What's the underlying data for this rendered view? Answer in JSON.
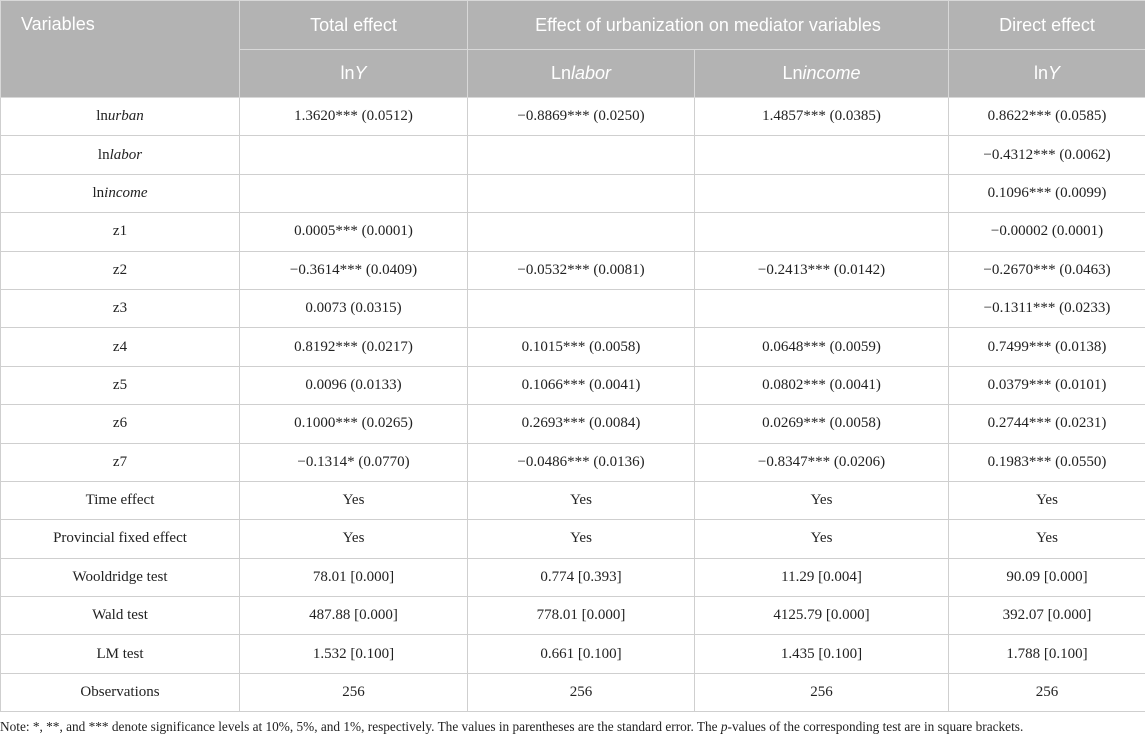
{
  "header": {
    "col_variables": "Variables",
    "total_effect": "Total effect",
    "mediator_effect": "Effect of urbanization on mediator variables",
    "direct_effect": "Direct effect",
    "sub_total": {
      "pre": "ln",
      "it": "Y"
    },
    "sub_labor": {
      "pre": "Ln",
      "it": "labor"
    },
    "sub_income": {
      "pre": "Ln",
      "it": "income"
    },
    "sub_direct": {
      "pre": "ln",
      "it": "Y"
    }
  },
  "rows": [
    {
      "var_pre": "ln",
      "var_it": "urban",
      "vals": [
        "1.3620*** (0.0512)",
        "−0.8869*** (0.0250)",
        "1.4857*** (0.0385)",
        "0.8622*** (0.0585)"
      ]
    },
    {
      "var_pre": "ln",
      "var_it": "labor",
      "vals": [
        "",
        "",
        "",
        "−0.4312*** (0.0062)"
      ]
    },
    {
      "var_pre": "ln",
      "var_it": "income",
      "vals": [
        "",
        "",
        "",
        "0.1096*** (0.0099)"
      ]
    },
    {
      "var_pre": "z1",
      "var_it": "",
      "vals": [
        "0.0005*** (0.0001)",
        "",
        "",
        "−0.00002 (0.0001)"
      ]
    },
    {
      "var_pre": "z2",
      "var_it": "",
      "vals": [
        "−0.3614*** (0.0409)",
        "−0.0532*** (0.0081)",
        "−0.2413*** (0.0142)",
        "−0.2670*** (0.0463)"
      ]
    },
    {
      "var_pre": "z3",
      "var_it": "",
      "vals": [
        "0.0073 (0.0315)",
        "",
        "",
        "−0.1311*** (0.0233)"
      ]
    },
    {
      "var_pre": "z4",
      "var_it": "",
      "vals": [
        "0.8192*** (0.0217)",
        "0.1015*** (0.0058)",
        "0.0648*** (0.0059)",
        "0.7499*** (0.0138)"
      ]
    },
    {
      "var_pre": "z5",
      "var_it": "",
      "vals": [
        "0.0096 (0.0133)",
        "0.1066*** (0.0041)",
        "0.0802*** (0.0041)",
        "0.0379*** (0.0101)"
      ]
    },
    {
      "var_pre": "z6",
      "var_it": "",
      "vals": [
        "0.1000*** (0.0265)",
        "0.2693*** (0.0084)",
        "0.0269*** (0.0058)",
        "0.2744*** (0.0231)"
      ]
    },
    {
      "var_pre": "z7",
      "var_it": "",
      "vals": [
        "−0.1314* (0.0770)",
        "−0.0486*** (0.0136)",
        "−0.8347*** (0.0206)",
        "0.1983*** (0.0550)"
      ]
    },
    {
      "var_pre": "Time effect",
      "var_it": "",
      "vals": [
        "Yes",
        "Yes",
        "Yes",
        "Yes"
      ]
    },
    {
      "var_pre": "Provincial fixed effect",
      "var_it": "",
      "vals": [
        "Yes",
        "Yes",
        "Yes",
        "Yes"
      ]
    },
    {
      "var_pre": "Wooldridge test",
      "var_it": "",
      "vals": [
        "78.01 [0.000]",
        "0.774 [0.393]",
        "11.29 [0.004]",
        "90.09 [0.000]"
      ]
    },
    {
      "var_pre": "Wald test",
      "var_it": "",
      "vals": [
        "487.88 [0.000]",
        "778.01 [0.000]",
        "4125.79 [0.000]",
        "392.07 [0.000]"
      ]
    },
    {
      "var_pre": "LM test",
      "var_it": "",
      "vals": [
        "1.532 [0.100]",
        "0.661 [0.100]",
        "1.435 [0.100]",
        "1.788 [0.100]"
      ]
    },
    {
      "var_pre": "Observations",
      "var_it": "",
      "vals": [
        "256",
        "256",
        "256",
        "256"
      ]
    }
  ],
  "note": {
    "part1": "Note: *, **, and *** denote significance levels at 10%, 5%, and 1%, respectively. The values in parentheses are the standard error. The ",
    "italic": "p",
    "part2": "-values of the corresponding test are in square brackets."
  }
}
